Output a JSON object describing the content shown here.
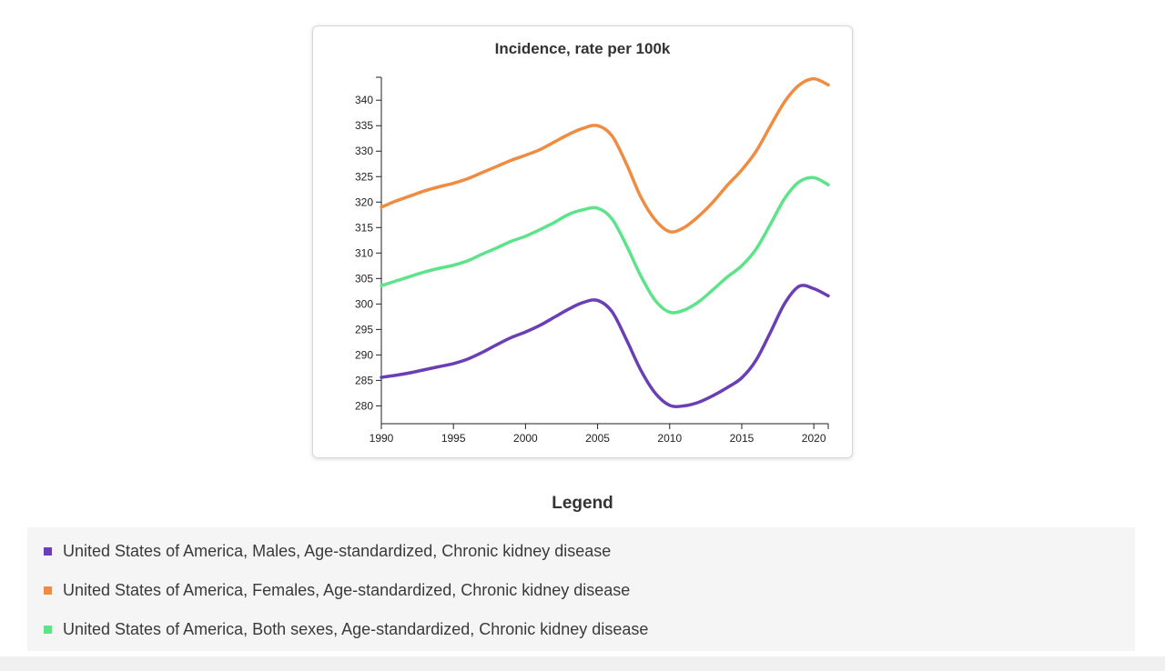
{
  "chart_data": {
    "type": "line",
    "title": "Incidence, rate per 100k",
    "xlabel": "",
    "ylabel": "",
    "xlim": [
      1990,
      2021
    ],
    "ylim": [
      276.5,
      344.5
    ],
    "x_ticks": [
      1990,
      1995,
      2000,
      2005,
      2010,
      2015,
      2020
    ],
    "y_ticks": [
      280,
      285,
      290,
      295,
      300,
      305,
      310,
      315,
      320,
      325,
      330,
      335,
      340
    ],
    "grid": false,
    "legend_placement": "bottom",
    "x": [
      1990,
      1991,
      1992,
      1993,
      1994,
      1995,
      1996,
      1997,
      1998,
      1999,
      2000,
      2001,
      2002,
      2003,
      2004,
      2005,
      2006,
      2007,
      2008,
      2009,
      2010,
      2011,
      2012,
      2013,
      2014,
      2015,
      2016,
      2017,
      2018,
      2019,
      2020,
      2021
    ],
    "series": [
      {
        "name": "United States of America, Males, Age-standardized, Chronic kidney disease",
        "color": "#6a3fb5",
        "values": [
          285.6,
          286.0,
          286.5,
          287.1,
          287.7,
          288.3,
          289.2,
          290.5,
          292.0,
          293.4,
          294.5,
          295.8,
          297.4,
          299.0,
          300.3,
          300.7,
          298.5,
          293.0,
          287.0,
          282.5,
          280.1,
          280.0,
          280.7,
          282.0,
          283.6,
          285.5,
          289.0,
          294.5,
          300.2,
          303.5,
          303.0,
          301.6
        ]
      },
      {
        "name": "United States of America, Females, Age-standardized, Chronic kidney disease",
        "color": "#f08c42",
        "values": [
          319.0,
          320.2,
          321.2,
          322.2,
          323.0,
          323.7,
          324.6,
          325.8,
          327.0,
          328.2,
          329.2,
          330.3,
          331.8,
          333.3,
          334.5,
          335.0,
          333.0,
          327.5,
          321.0,
          316.5,
          314.2,
          315.0,
          317.2,
          320.0,
          323.3,
          326.3,
          330.0,
          335.0,
          339.8,
          343.0,
          344.2,
          343.0
        ]
      },
      {
        "name": "United States of America, Both sexes, Age-standardized, Chronic kidney disease",
        "color": "#5de38a",
        "values": [
          303.6,
          304.5,
          305.4,
          306.3,
          307.0,
          307.6,
          308.5,
          309.8,
          311.0,
          312.3,
          313.3,
          314.6,
          316.0,
          317.6,
          318.5,
          318.8,
          316.7,
          311.5,
          305.5,
          300.7,
          298.4,
          298.8,
          300.4,
          302.8,
          305.3,
          307.5,
          310.8,
          315.7,
          320.8,
          324.0,
          324.8,
          323.4
        ]
      }
    ]
  },
  "legend": {
    "title": "Legend",
    "items": [
      {
        "label": "United States of America, Males, Age-standardized, Chronic kidney disease",
        "color": "#6a3fb5"
      },
      {
        "label": "United States of America, Females, Age-standardized, Chronic kidney disease",
        "color": "#f08c42"
      },
      {
        "label": "United States of America, Both sexes, Age-standardized, Chronic kidney disease",
        "color": "#5de38a"
      }
    ]
  }
}
